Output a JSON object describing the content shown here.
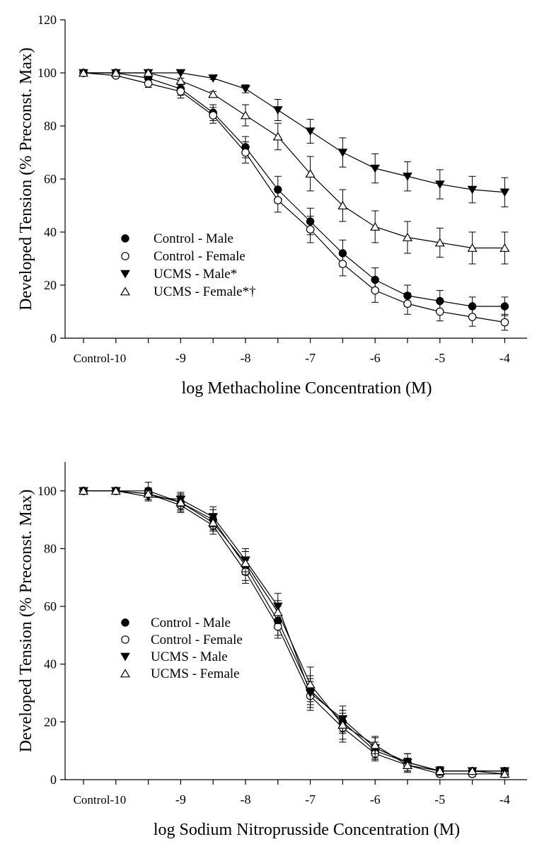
{
  "chart_data": [
    {
      "type": "line",
      "xlabel": "log Methacholine Concentration (M)",
      "ylabel": "Developed Tension (% Preconst. Max)",
      "x_categories": [
        "Control",
        "-10",
        "-9.5",
        "-9",
        "-8.5",
        "-8",
        "-7.5",
        "-7",
        "-6.5",
        "-6",
        "-5.5",
        "-5",
        "-4.5",
        "-4"
      ],
      "x_tick_labels": [
        "Control",
        "-10",
        "-9",
        "-8",
        "-7",
        "-6",
        "-5",
        "-4"
      ],
      "ylim": [
        0,
        120
      ],
      "y_ticks": [
        0,
        20,
        40,
        60,
        80,
        100,
        120
      ],
      "legend_position": "lower-left",
      "series": [
        {
          "name": "Control - Male",
          "marker": "circle-filled",
          "values": [
            100,
            100,
            98,
            94,
            85,
            72,
            56,
            44,
            32,
            22,
            16,
            14,
            12,
            12
          ],
          "errors": [
            0,
            0,
            1.5,
            2.5,
            3,
            4,
            5,
            5,
            5,
            4.5,
            4,
            4,
            3.5,
            3.5
          ]
        },
        {
          "name": "Control - Female",
          "marker": "circle-open",
          "values": [
            100,
            99,
            96,
            93,
            84,
            70,
            52,
            41,
            28,
            18,
            13,
            10,
            8,
            6
          ],
          "errors": [
            0,
            0.5,
            1.5,
            2.5,
            3,
            4,
            4.5,
            5,
            4.5,
            4.5,
            4,
            3.5,
            3.5,
            3
          ]
        },
        {
          "name": "UCMS - Male*",
          "marker": "triangle-down-filled",
          "values": [
            100,
            100,
            100,
            100,
            98,
            94,
            86,
            78,
            70,
            64,
            61,
            58,
            56,
            55
          ],
          "errors": [
            0,
            0,
            0,
            0,
            0.5,
            1.5,
            4,
            4.5,
            5.5,
            5.5,
            5.5,
            5.5,
            5,
            5.5
          ]
        },
        {
          "name": "UCMS - Female*†",
          "marker": "triangle-up-open",
          "values": [
            100,
            100,
            100,
            97,
            92,
            84,
            76,
            62,
            50,
            42,
            38,
            36,
            34,
            34
          ],
          "errors": [
            0,
            0,
            0,
            1,
            1,
            4,
            5,
            6.5,
            6,
            6,
            6,
            5.5,
            6,
            6
          ]
        }
      ]
    },
    {
      "type": "line",
      "xlabel": "log Sodium Nitroprusside Concentration (M)",
      "ylabel": "Developed Tension (% Preconst. Max)",
      "x_categories": [
        "Control",
        "-10",
        "-9.5",
        "-9",
        "-8.5",
        "-8",
        "-7.5",
        "-7",
        "-6.5",
        "-6",
        "-5.5",
        "-5",
        "-4.5",
        "-4"
      ],
      "x_tick_labels": [
        "Control",
        "-10",
        "-9",
        "-8",
        "-7",
        "-6",
        "-5",
        "-4"
      ],
      "ylim": [
        0,
        110
      ],
      "y_ticks": [
        0,
        20,
        40,
        60,
        80,
        100
      ],
      "legend_position": "lower-left",
      "series": [
        {
          "name": "Control - Male",
          "marker": "circle-filled",
          "values": [
            100,
            100,
            100,
            96,
            90,
            74,
            55,
            31,
            20,
            10,
            6,
            3,
            3,
            3
          ],
          "errors": [
            0,
            0,
            3,
            3,
            3.5,
            5,
            5,
            5,
            4,
            3,
            3,
            1.5,
            1,
            1
          ]
        },
        {
          "name": "Control - Female",
          "marker": "circle-open",
          "values": [
            100,
            100,
            99,
            95,
            88,
            72,
            53,
            29,
            18,
            9,
            5,
            2,
            2,
            2
          ],
          "errors": [
            0,
            0,
            2,
            2.5,
            3,
            4,
            4,
            5,
            5,
            2.5,
            2,
            1,
            1,
            1
          ]
        },
        {
          "name": "UCMS - Male",
          "marker": "triangle-down-filled",
          "values": [
            100,
            100,
            98,
            97,
            91,
            76,
            60,
            30,
            21,
            11,
            6,
            3,
            3,
            3
          ],
          "errors": [
            0,
            0,
            1.5,
            2.5,
            3.5,
            4,
            4.5,
            5,
            4.5,
            3.5,
            3,
            1.5,
            1,
            1
          ]
        },
        {
          "name": "UCMS - Female",
          "marker": "triangle-up-open",
          "values": [
            100,
            100,
            99,
            96,
            89,
            75,
            58,
            33,
            19,
            12,
            5,
            3,
            3,
            2
          ],
          "errors": [
            0,
            0,
            2,
            2.5,
            3,
            4,
            4,
            6,
            5,
            3,
            2.5,
            1.5,
            1,
            1
          ]
        }
      ]
    }
  ]
}
